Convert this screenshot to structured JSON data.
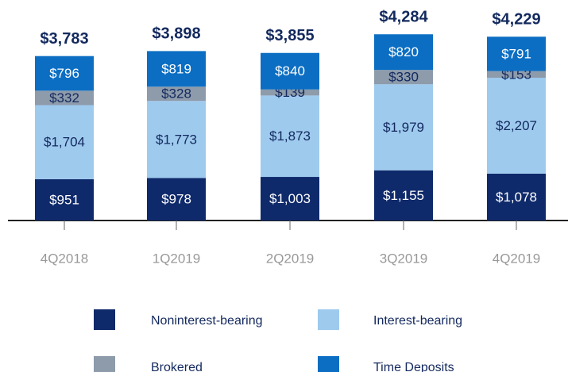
{
  "chart_data": {
    "type": "stacked_bar",
    "categories": [
      "4Q2018",
      "1Q2019",
      "2Q2019",
      "3Q2019",
      "4Q2019"
    ],
    "series": [
      {
        "name": "Noninterest-bearing",
        "color": "#0f2a6b",
        "values": [
          951,
          978,
          1003,
          1155,
          1078
        ],
        "value_labels": [
          "$951",
          "$978",
          "$1,003",
          "$1,155",
          "$1,078"
        ]
      },
      {
        "name": "Interest-bearing",
        "color": "#9ecaee",
        "values": [
          1704,
          1773,
          1873,
          1979,
          2207
        ],
        "value_labels": [
          "$1,704",
          "$1,773",
          "$1,873",
          "$1,979",
          "$2,207"
        ]
      },
      {
        "name": "Brokered",
        "color": "#8d9bab",
        "values": [
          332,
          328,
          139,
          330,
          153
        ],
        "value_labels": [
          "$332",
          "$328",
          "$139",
          "$330",
          "$153"
        ]
      },
      {
        "name": "Time Deposits",
        "color": "#0b6ec3",
        "values": [
          796,
          819,
          840,
          820,
          791
        ],
        "value_labels": [
          "$796",
          "$819",
          "$840",
          "$820",
          "$791"
        ]
      }
    ],
    "totals": [
      3783,
      3898,
      3855,
      4284,
      4229
    ],
    "total_labels": [
      "$3,783",
      "$3,898",
      "$3,855",
      "$4,284",
      "$4,229"
    ]
  }
}
